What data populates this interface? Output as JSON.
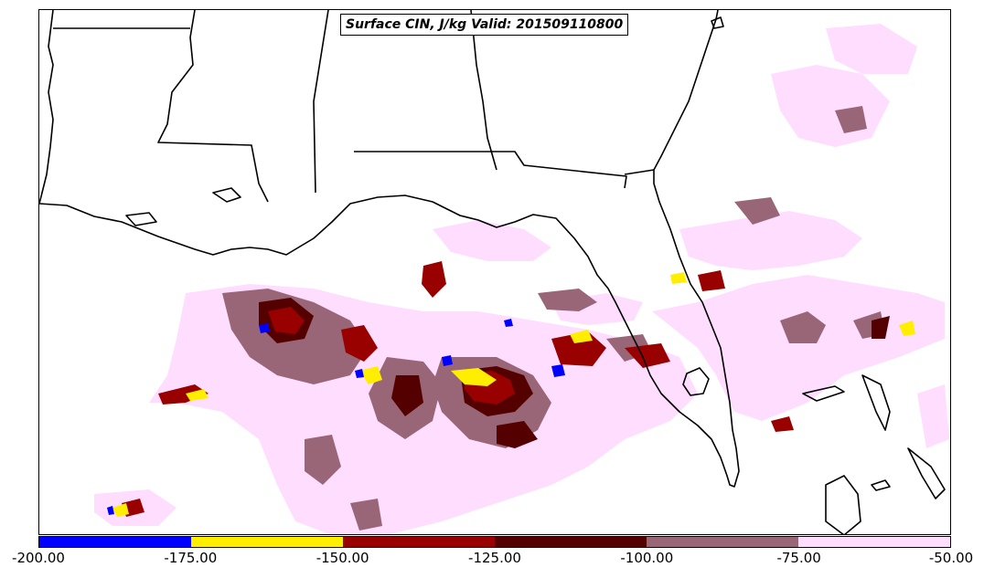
{
  "title": "Surface CIN, J/kg Valid: 201509110800",
  "colorbar": {
    "bins": [
      {
        "from": -200,
        "to": -175,
        "color": "#0000ff"
      },
      {
        "from": -175,
        "to": -150,
        "color": "#ffee00"
      },
      {
        "from": -150,
        "to": -125,
        "color": "#990000"
      },
      {
        "from": -125,
        "to": -100,
        "color": "#550000"
      },
      {
        "from": -100,
        "to": -75,
        "color": "#996677"
      },
      {
        "from": -75,
        "to": -50,
        "color": "#ffddff"
      }
    ],
    "tick_labels": [
      "-200.00",
      "-175.00",
      "-150.00",
      "-125.00",
      "-100.00",
      "-75.00",
      "-50.00"
    ]
  },
  "map": {
    "region": "Gulf of Mexico and Southeastern United States",
    "boundary_color": "#000000",
    "background_color": "#ffffff"
  }
}
